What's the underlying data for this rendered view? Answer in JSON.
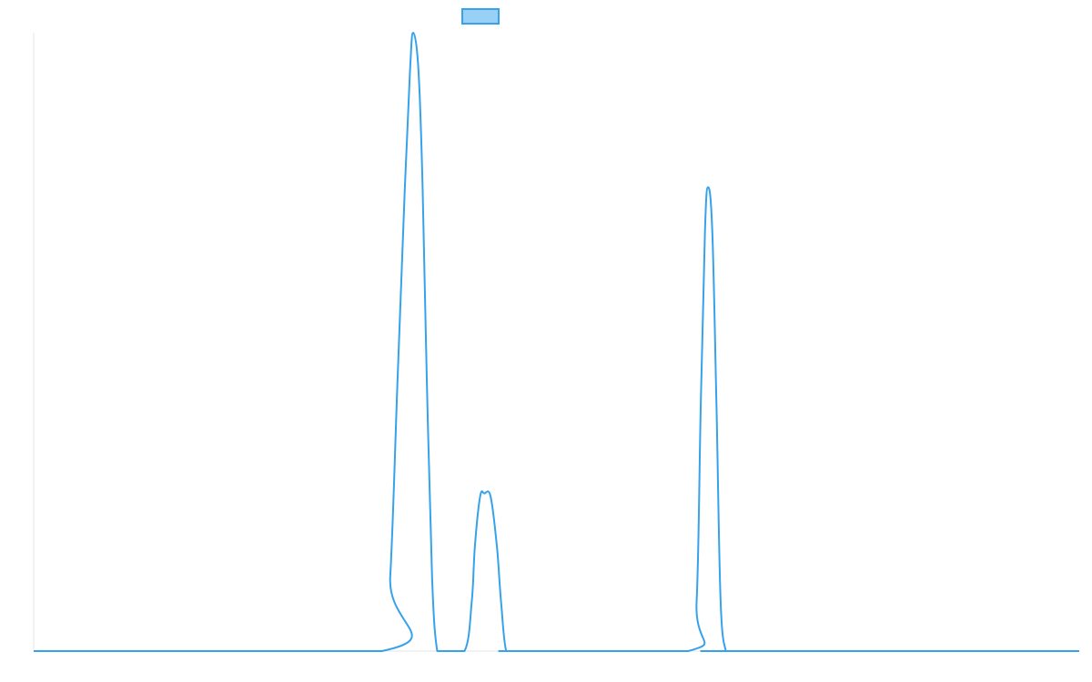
{
  "chart_data": {
    "type": "line",
    "title": "",
    "xlabel": "",
    "ylabel": "",
    "legend": {
      "position": "top",
      "entries": [
        {
          "label": ""
        }
      ]
    },
    "grid": false,
    "xlim": [
      0,
      1000
    ],
    "ylim": [
      0,
      100
    ],
    "series": [
      {
        "name": "",
        "x": [
          0,
          333,
          341,
          348,
          355,
          360,
          363,
          368,
          372,
          376,
          381,
          386,
          392,
          412,
          419,
          422,
          427,
          431,
          437,
          443,
          447,
          452,
          461,
          626,
          634,
          638,
          642,
          645,
          649,
          653,
          657,
          662,
          666,
          1000
        ],
        "y": [
          0,
          0,
          12,
          44,
          75,
          94,
          100,
          94,
          75,
          44,
          12,
          0,
          0,
          0,
          8,
          17,
          25,
          25.5,
          25,
          17,
          8,
          0,
          0,
          0,
          8,
          40,
          68,
          75,
          68,
          40,
          8,
          0,
          0,
          0
        ]
      }
    ]
  },
  "colors": {
    "series": "#36a2eb",
    "series_fill": "#9ad0f5",
    "axis": "#e5e5e5"
  }
}
